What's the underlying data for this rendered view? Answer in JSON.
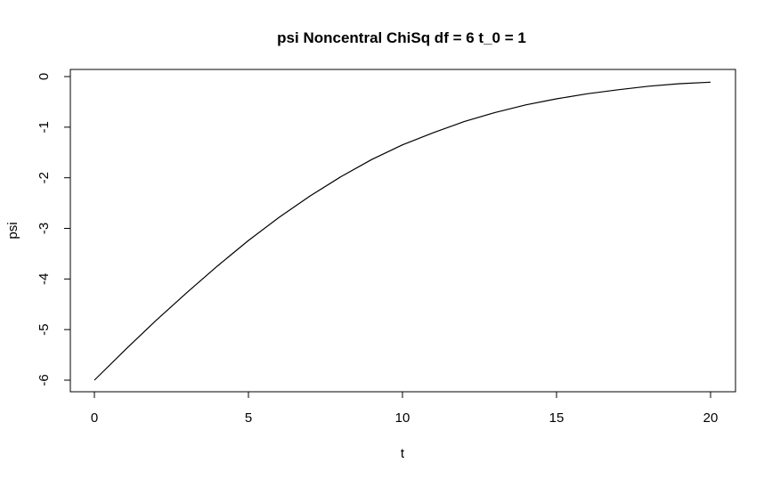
{
  "chart_data": {
    "type": "line",
    "title": "psi Noncentral ChiSq df = 6 t_0 = 1",
    "xlabel": "t",
    "ylabel": "psi",
    "xlim": [
      0,
      20
    ],
    "ylim": [
      -6,
      0
    ],
    "grid": false,
    "x_ticks": [
      0,
      5,
      10,
      15,
      20
    ],
    "x_tick_labels": [
      "0",
      "5",
      "10",
      "15",
      "20"
    ],
    "y_ticks": [
      -6,
      -5,
      -4,
      -3,
      -2,
      -1,
      0
    ],
    "y_tick_labels": [
      "-6",
      "-5",
      "-4",
      "-3",
      "-2",
      "-1",
      "0"
    ],
    "line_color": "#000000",
    "series": [
      {
        "x": [
          0,
          1,
          2,
          3,
          4,
          5,
          6,
          7,
          8,
          9,
          10,
          11,
          12,
          13,
          14,
          15,
          16,
          17,
          18,
          19,
          20
        ],
        "values": [
          -6.0,
          -5.4,
          -4.82,
          -4.27,
          -3.74,
          -3.24,
          -2.78,
          -2.36,
          -1.98,
          -1.64,
          -1.35,
          -1.11,
          -0.89,
          -0.71,
          -0.56,
          -0.44,
          -0.34,
          -0.26,
          -0.19,
          -0.14,
          -0.11
        ]
      }
    ]
  }
}
